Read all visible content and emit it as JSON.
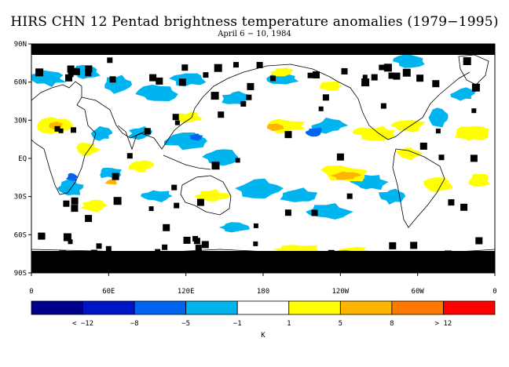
{
  "title": "HIRS CHN 12 Pentad brightness temperature anomalies (1979−1995)",
  "subtitle": "April 6 − 10, 1984",
  "map": {
    "lat_labels": [
      "90N",
      "60N",
      "30N",
      "EQ",
      "30S",
      "60S",
      "90S"
    ],
    "lon_labels": [
      "0",
      "60E",
      "120E",
      "180",
      "120W",
      "60W",
      "0"
    ],
    "missing_data_color": "#000000",
    "zero_anomaly_color": "#ffffff"
  },
  "colorbar": {
    "unit": "K",
    "bins": [
      {
        "color": "#00008c"
      },
      {
        "color": "#0014c8"
      },
      {
        "color": "#0064f0"
      },
      {
        "color": "#00b4f0"
      },
      {
        "color": "#ffffff"
      },
      {
        "color": "#ffff00"
      },
      {
        "color": "#ffb400"
      },
      {
        "color": "#ff7800"
      },
      {
        "color": "#ff0000"
      }
    ],
    "tick_labels": [
      "< −12",
      "−8",
      "−5",
      "−1",
      "1",
      "5",
      "8",
      "> 12"
    ]
  }
}
